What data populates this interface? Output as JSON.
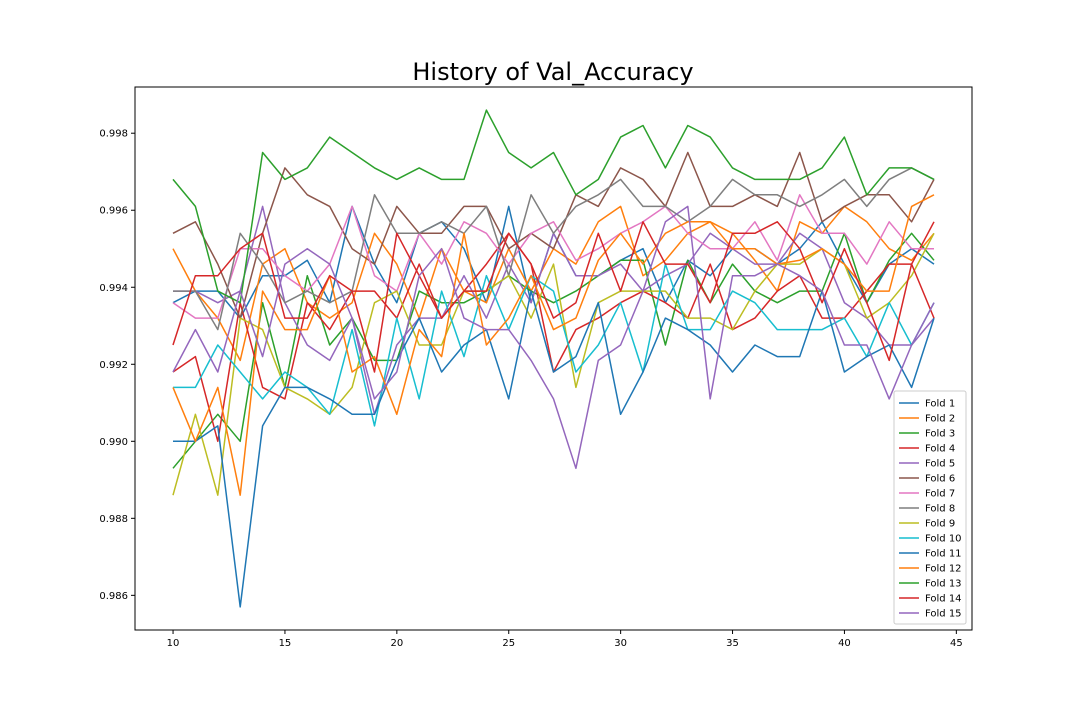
{
  "chart_data": {
    "type": "line",
    "title": "History of Val_Accuracy",
    "xlabel": "",
    "ylabel": "",
    "xlim": [
      8.3,
      45.7
    ],
    "ylim": [
      0.9851,
      0.9992
    ],
    "xticks": [
      10,
      15,
      20,
      25,
      30,
      35,
      40,
      45
    ],
    "yticks": [
      0.986,
      0.988,
      0.99,
      0.992,
      0.994,
      0.996,
      0.998
    ],
    "ytick_format": 3,
    "grid": false,
    "legend_position": "lower-right",
    "x": [
      10,
      11,
      12,
      13,
      14,
      15,
      16,
      17,
      18,
      19,
      20,
      21,
      22,
      23,
      24,
      25,
      26,
      27,
      28,
      29,
      30,
      31,
      32,
      33,
      34,
      35,
      36,
      37,
      38,
      39,
      40,
      41,
      42,
      43,
      44
    ],
    "series": [
      {
        "name": "Fold 1",
        "color": "#1f77b4",
        "values": [
          0.9936,
          0.9939,
          0.9939,
          0.9932,
          0.9943,
          0.9943,
          0.9947,
          0.9936,
          0.9961,
          0.9946,
          0.9936,
          0.9954,
          0.9957,
          0.995,
          0.9936,
          0.9961,
          0.9936,
          0.9954,
          0.9943,
          0.9943,
          0.9947,
          0.995,
          0.9936,
          0.9947,
          0.9943,
          0.995,
          0.995,
          0.9946,
          0.995,
          0.9957,
          0.9946,
          0.9936,
          0.9946,
          0.995,
          0.9946
        ]
      },
      {
        "name": "Fold 2",
        "color": "#ff7f0e",
        "values": [
          0.995,
          0.9939,
          0.9932,
          0.9921,
          0.9946,
          0.995,
          0.9936,
          0.9932,
          0.9936,
          0.9954,
          0.9946,
          0.9932,
          0.995,
          0.9939,
          0.9936,
          0.995,
          0.9939,
          0.995,
          0.9946,
          0.9957,
          0.9961,
          0.9943,
          0.9947,
          0.9954,
          0.9957,
          0.9954,
          0.9947,
          0.9939,
          0.9957,
          0.9954,
          0.9961,
          0.9957,
          0.995,
          0.9947,
          0.9954
        ]
      },
      {
        "name": "Fold 3",
        "color": "#2ca02c",
        "values": [
          0.9893,
          0.99,
          0.9907,
          0.99,
          0.9936,
          0.9914,
          0.9943,
          0.9925,
          0.9932,
          0.9921,
          0.9921,
          0.9939,
          0.9936,
          0.9936,
          0.9939,
          0.9943,
          0.9939,
          0.9936,
          0.9939,
          0.9943,
          0.9947,
          0.9947,
          0.9925,
          0.9947,
          0.9936,
          0.9946,
          0.9939,
          0.9936,
          0.9939,
          0.9939,
          0.9954,
          0.9936,
          0.9947,
          0.9954,
          0.9947
        ]
      },
      {
        "name": "Fold 4",
        "color": "#d62728",
        "values": [
          0.9918,
          0.9922,
          0.99,
          0.9936,
          0.9914,
          0.9911,
          0.9936,
          0.9929,
          0.9939,
          0.9939,
          0.9932,
          0.9946,
          0.9932,
          0.9939,
          0.9946,
          0.9954,
          0.9946,
          0.9918,
          0.9929,
          0.9932,
          0.9936,
          0.9939,
          0.9936,
          0.9932,
          0.9946,
          0.9929,
          0.9932,
          0.9939,
          0.9943,
          0.9932,
          0.9932,
          0.9939,
          0.9946,
          0.9946,
          0.9957
        ]
      },
      {
        "name": "Fold 5",
        "color": "#9467bd",
        "values": [
          0.9939,
          0.9939,
          0.9936,
          0.9939,
          0.9961,
          0.9936,
          0.9925,
          0.9921,
          0.9932,
          0.9907,
          0.9925,
          0.9932,
          0.9932,
          0.9943,
          0.9932,
          0.9946,
          0.9936,
          0.9954,
          0.9943,
          0.9943,
          0.9946,
          0.9939,
          0.9943,
          0.9946,
          0.9954,
          0.995,
          0.9946,
          0.9946,
          0.9954,
          0.995,
          0.9936,
          0.9932,
          0.9925,
          0.9925,
          0.9932
        ]
      },
      {
        "name": "Fold 6",
        "color": "#8c564b",
        "values": [
          0.9954,
          0.9957,
          0.9946,
          0.9932,
          0.9954,
          0.9971,
          0.9964,
          0.9961,
          0.995,
          0.9946,
          0.9961,
          0.9954,
          0.9954,
          0.9961,
          0.9961,
          0.995,
          0.9954,
          0.995,
          0.9964,
          0.9961,
          0.9971,
          0.9968,
          0.9961,
          0.9975,
          0.9961,
          0.9961,
          0.9964,
          0.9961,
          0.9975,
          0.9957,
          0.9961,
          0.9964,
          0.9964,
          0.9957,
          0.9968
        ]
      },
      {
        "name": "Fold 7",
        "color": "#e377c2",
        "values": [
          0.9936,
          0.9932,
          0.9932,
          0.995,
          0.995,
          0.9943,
          0.9939,
          0.9946,
          0.9961,
          0.9943,
          0.9939,
          0.9954,
          0.9946,
          0.9957,
          0.9954,
          0.9946,
          0.9954,
          0.9957,
          0.9947,
          0.995,
          0.9954,
          0.9957,
          0.9961,
          0.9954,
          0.995,
          0.995,
          0.9957,
          0.9947,
          0.9964,
          0.9954,
          0.9954,
          0.9946,
          0.9957,
          0.995,
          0.995
        ]
      },
      {
        "name": "Fold 8",
        "color": "#7f7f7f",
        "values": [
          0.9939,
          0.9939,
          0.9929,
          0.9954,
          0.9946,
          0.9936,
          0.9939,
          0.9936,
          0.9939,
          0.9964,
          0.9954,
          0.9954,
          0.9957,
          0.9954,
          0.9961,
          0.9943,
          0.9964,
          0.9954,
          0.9961,
          0.9964,
          0.9968,
          0.9961,
          0.9961,
          0.9957,
          0.9961,
          0.9968,
          0.9964,
          0.9964,
          0.9961,
          0.9964,
          0.9968,
          0.9961,
          0.9968,
          0.9971,
          0.9968
        ]
      },
      {
        "name": "Fold 9",
        "color": "#bcbd22",
        "values": [
          0.9886,
          0.9907,
          0.9886,
          0.9932,
          0.9929,
          0.9914,
          0.9911,
          0.9907,
          0.9914,
          0.9936,
          0.9939,
          0.9925,
          0.9925,
          0.9939,
          0.9939,
          0.9943,
          0.9932,
          0.9946,
          0.9914,
          0.9936,
          0.9939,
          0.9939,
          0.9939,
          0.9932,
          0.9932,
          0.9929,
          0.9939,
          0.9946,
          0.9946,
          0.995,
          0.9946,
          0.9932,
          0.9936,
          0.9943,
          0.9954
        ]
      },
      {
        "name": "Fold 10",
        "color": "#17becf",
        "values": [
          0.9914,
          0.9914,
          0.9925,
          0.9918,
          0.9911,
          0.9918,
          0.9914,
          0.9907,
          0.9929,
          0.9904,
          0.9932,
          0.9911,
          0.9939,
          0.9922,
          0.9943,
          0.9929,
          0.9943,
          0.9939,
          0.9918,
          0.9925,
          0.9936,
          0.9918,
          0.9946,
          0.9929,
          0.9929,
          0.9939,
          0.9936,
          0.9929,
          0.9929,
          0.9929,
          0.9932,
          0.9922,
          0.9936,
          0.9925,
          0.9936
        ]
      },
      {
        "name": "Fold 11",
        "color": "#1f77b4",
        "values": [
          0.99,
          0.99,
          0.9904,
          0.9857,
          0.9904,
          0.9914,
          0.9914,
          0.9911,
          0.9907,
          0.9907,
          0.9921,
          0.9932,
          0.9918,
          0.9925,
          0.9929,
          0.9911,
          0.9939,
          0.9918,
          0.9922,
          0.9936,
          0.9907,
          0.9918,
          0.9932,
          0.9929,
          0.9925,
          0.9918,
          0.9925,
          0.9922,
          0.9922,
          0.9939,
          0.9918,
          0.9922,
          0.9925,
          0.9914,
          0.9932
        ]
      },
      {
        "name": "Fold 12",
        "color": "#ff7f0e",
        "values": [
          0.9914,
          0.99,
          0.9914,
          0.9886,
          0.9939,
          0.9929,
          0.9929,
          0.9943,
          0.9918,
          0.9922,
          0.9907,
          0.9929,
          0.9922,
          0.9954,
          0.9925,
          0.9932,
          0.9943,
          0.9929,
          0.9932,
          0.9947,
          0.9954,
          0.9946,
          0.9954,
          0.9957,
          0.9957,
          0.995,
          0.995,
          0.9946,
          0.9947,
          0.995,
          0.9946,
          0.9939,
          0.9939,
          0.9961,
          0.9964
        ]
      },
      {
        "name": "Fold 13",
        "color": "#2ca02c",
        "values": [
          0.9968,
          0.9961,
          0.9939,
          0.9936,
          0.9975,
          0.9968,
          0.9971,
          0.9979,
          0.9975,
          0.9971,
          0.9968,
          0.9971,
          0.9968,
          0.9968,
          0.9986,
          0.9975,
          0.9971,
          0.9975,
          0.9964,
          0.9968,
          0.9979,
          0.9982,
          0.9971,
          0.9982,
          0.9979,
          0.9971,
          0.9968,
          0.9968,
          0.9968,
          0.9971,
          0.9979,
          0.9964,
          0.9971,
          0.9971,
          0.9968
        ]
      },
      {
        "name": "Fold 14",
        "color": "#d62728",
        "values": [
          0.9925,
          0.9943,
          0.9943,
          0.995,
          0.9954,
          0.9932,
          0.9932,
          0.9943,
          0.9939,
          0.9918,
          0.9954,
          0.9943,
          0.9932,
          0.9939,
          0.9939,
          0.9954,
          0.9946,
          0.9932,
          0.9936,
          0.9954,
          0.9939,
          0.9957,
          0.9946,
          0.9946,
          0.9936,
          0.9954,
          0.9954,
          0.9957,
          0.995,
          0.9936,
          0.995,
          0.9936,
          0.9921,
          0.9946,
          0.9932
        ]
      },
      {
        "name": "Fold 15",
        "color": "#9467bd",
        "values": [
          0.9918,
          0.9929,
          0.9918,
          0.9939,
          0.9922,
          0.9946,
          0.995,
          0.9946,
          0.9932,
          0.9911,
          0.9918,
          0.9943,
          0.995,
          0.9932,
          0.9929,
          0.9929,
          0.9921,
          0.9911,
          0.9893,
          0.9921,
          0.9925,
          0.9939,
          0.9957,
          0.9961,
          0.9911,
          0.9943,
          0.9943,
          0.9946,
          0.9943,
          0.9939,
          0.9925,
          0.9925,
          0.9911,
          0.9925,
          0.9936
        ]
      }
    ]
  }
}
